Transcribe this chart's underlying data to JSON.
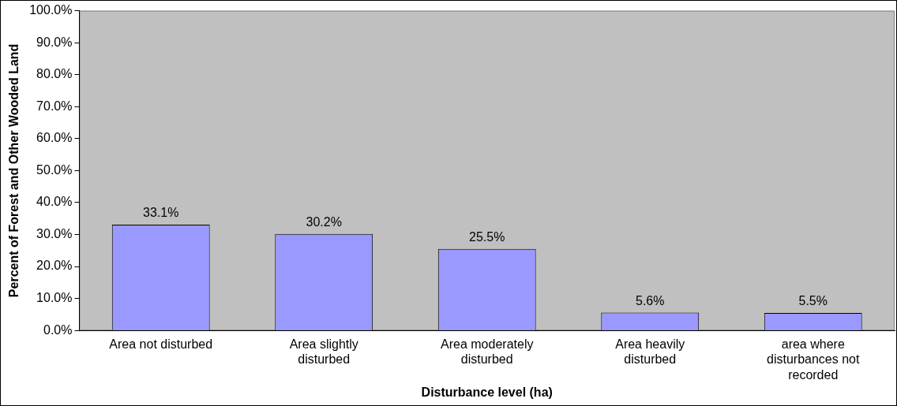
{
  "chart_data": {
    "type": "bar",
    "xlabel": "Disturbance level (ha)",
    "ylabel": "Percent of Forest and Other Wooded Land",
    "categories": [
      "Area not disturbed",
      "Area slightly disturbed",
      "Area moderately disturbed",
      "Area heavily disturbed",
      "area where disturbances not recorded"
    ],
    "values": [
      33.1,
      30.2,
      25.5,
      5.6,
      5.5
    ],
    "value_labels": [
      "33.1%",
      "30.2%",
      "25.5%",
      "5.6%",
      "5.5%"
    ],
    "color": "#9999ff",
    "ylim": [
      0,
      100
    ],
    "yticks": [
      {
        "value": 0,
        "label": "0.0%"
      },
      {
        "value": 10,
        "label": "10.0%"
      },
      {
        "value": 20,
        "label": "20.0%"
      },
      {
        "value": 30,
        "label": "30.0%"
      },
      {
        "value": 40,
        "label": "40.0%"
      },
      {
        "value": 50,
        "label": "50.0%"
      },
      {
        "value": 60,
        "label": "60.0%"
      },
      {
        "value": 70,
        "label": "70.0%"
      },
      {
        "value": 80,
        "label": "80.0%"
      },
      {
        "value": 90,
        "label": "90.0%"
      },
      {
        "value": 100,
        "label": "100.0%"
      }
    ],
    "grid": false,
    "legend": false
  }
}
